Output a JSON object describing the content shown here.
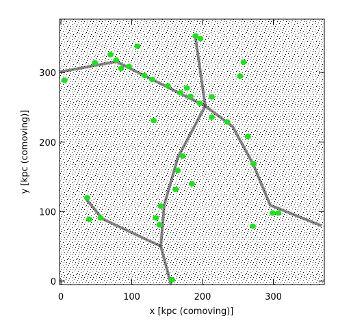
{
  "chart_data": {
    "type": "scatter",
    "xlabel": "x [kpc (comoving)]",
    "ylabel": "y [kpc (comoving)]",
    "xlim": [
      -2,
      372
    ],
    "ylim": [
      -5,
      377
    ],
    "xticks": [
      0,
      100,
      200,
      300
    ],
    "yticks": [
      0,
      100,
      200,
      300
    ],
    "series": [
      {
        "color": "#22dd22",
        "x": [
          5,
          48,
          70,
          78,
          85,
          96,
          108,
          118,
          129,
          151,
          169,
          178,
          183,
          196,
          213,
          190,
          197,
          258,
          253,
          131,
          213,
          235,
          264,
          272,
          172,
          165,
          185,
          162,
          141,
          134,
          139,
          37,
          40,
          56,
          271,
          299,
          307,
          157
        ],
        "values": [
          289,
          314,
          326,
          318,
          306,
          309,
          338,
          296,
          290,
          281,
          271,
          278,
          266,
          256,
          265,
          353,
          349,
          315,
          295,
          231,
          236,
          229,
          208,
          169,
          180,
          159,
          140,
          132,
          108,
          91,
          81,
          120,
          89,
          91,
          79,
          98,
          98,
          2
        ]
      }
    ]
  }
}
